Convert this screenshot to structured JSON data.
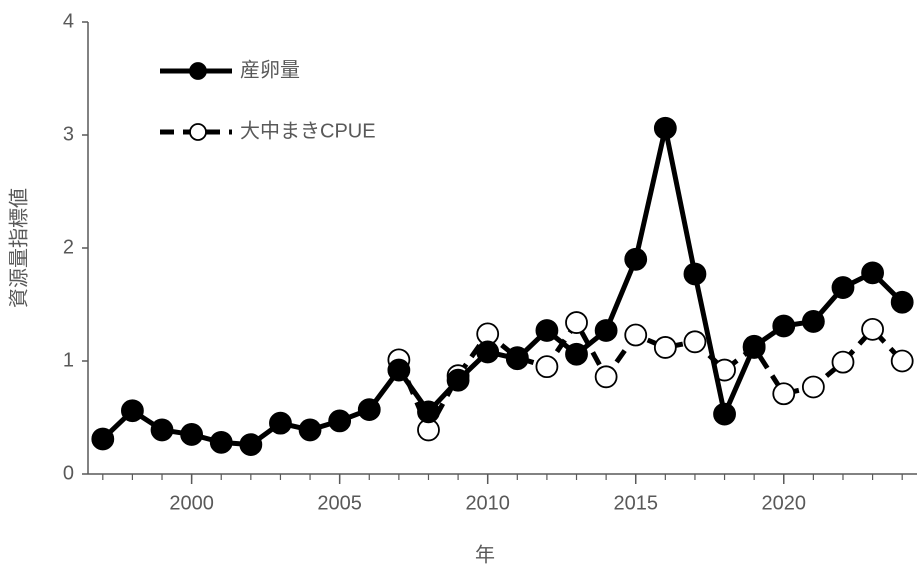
{
  "chart_data": {
    "type": "line",
    "xlabel": "年",
    "ylabel": "資源量指標値",
    "x": [
      1997,
      1998,
      1999,
      2000,
      2001,
      2002,
      2003,
      2004,
      2005,
      2006,
      2007,
      2008,
      2009,
      2010,
      2011,
      2012,
      2013,
      2014,
      2015,
      2016,
      2017,
      2018,
      2019,
      2020,
      2021,
      2022,
      2023,
      2024
    ],
    "series": [
      {
        "name": "産卵量",
        "color": "#000000",
        "marker": "filled",
        "dash": "solid",
        "values": [
          0.31,
          0.56,
          0.39,
          0.35,
          0.28,
          0.26,
          0.45,
          0.39,
          0.47,
          0.57,
          0.92,
          0.55,
          0.83,
          1.08,
          1.02,
          1.27,
          1.06,
          1.27,
          1.9,
          3.06,
          1.77,
          0.53,
          1.13,
          1.31,
          1.35,
          1.65,
          1.78,
          1.52
        ]
      },
      {
        "name": "大中まきCPUE",
        "color": "#000000",
        "marker": "open",
        "dash": "dashed",
        "values": [
          null,
          null,
          null,
          null,
          null,
          null,
          null,
          null,
          null,
          null,
          1.01,
          0.39,
          0.87,
          1.24,
          1.03,
          0.95,
          1.34,
          0.86,
          1.23,
          1.12,
          1.17,
          0.92,
          1.12,
          0.71,
          0.77,
          0.99,
          1.28,
          1.0
        ]
      }
    ],
    "xlim": [
      1996.5,
      2024.5
    ],
    "xticks": [
      2000,
      2005,
      2010,
      2015,
      2020
    ],
    "ylim": [
      0,
      4
    ],
    "yticks": [
      0,
      1,
      2,
      3,
      4
    ],
    "grid": false,
    "legend": "upper left"
  }
}
